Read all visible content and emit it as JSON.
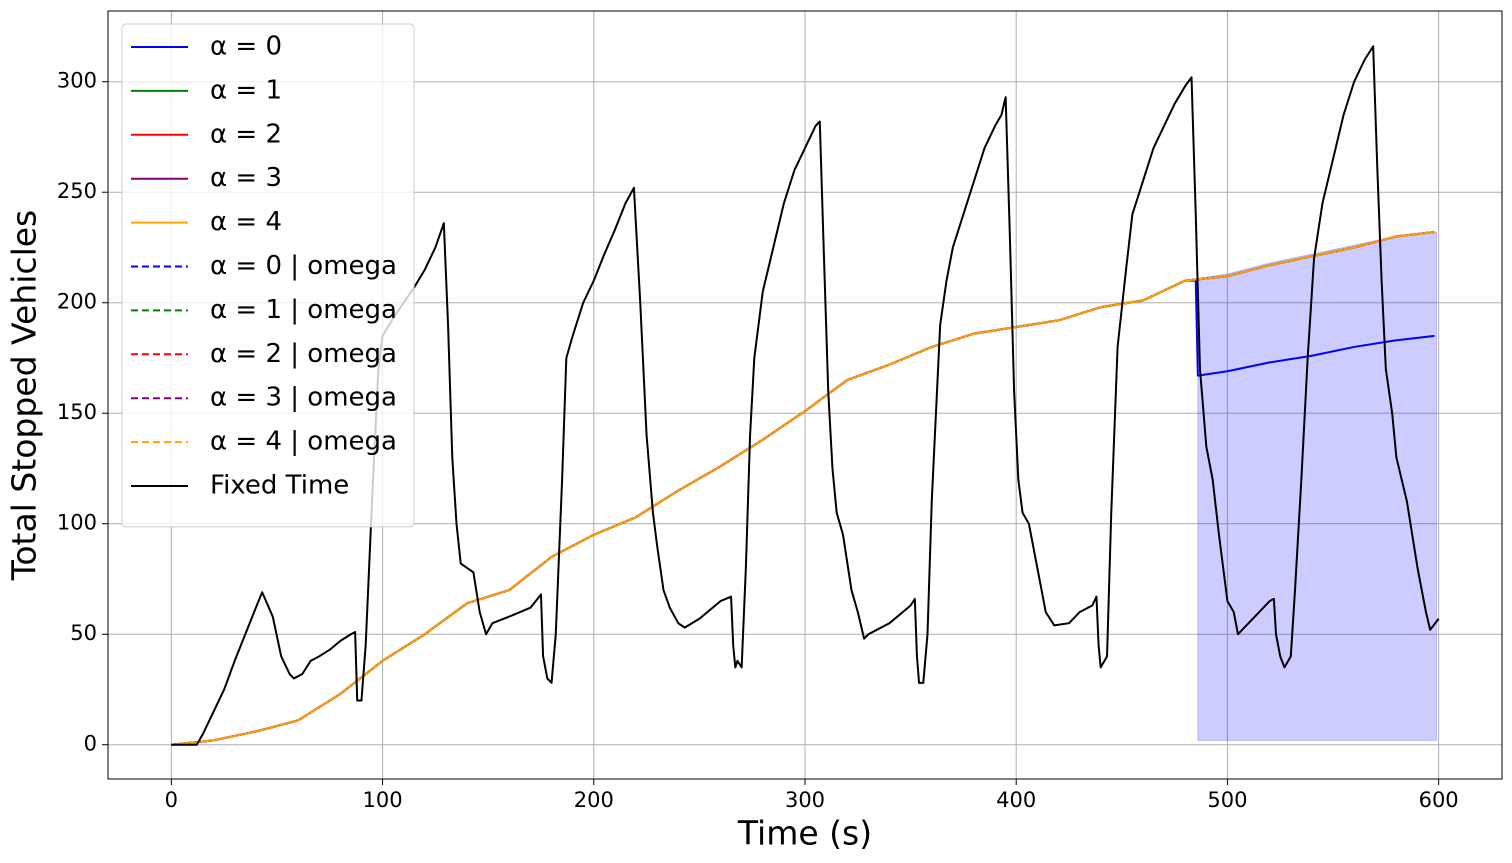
{
  "chart_data": {
    "type": "line",
    "xlabel": "Time (s)",
    "ylabel": "Total Stopped Vehicles",
    "xlim": [
      -30,
      630
    ],
    "ylim": [
      -15.5,
      332
    ],
    "xticks": [
      0,
      100,
      200,
      300,
      400,
      500,
      600
    ],
    "yticks": [
      0,
      50,
      100,
      150,
      200,
      250,
      300
    ],
    "grid": true,
    "legend": "upper left",
    "shade": {
      "color": "#0000ff",
      "opacity": 0.2,
      "x": [
        486,
        500,
        520,
        540,
        560,
        580,
        599
      ],
      "upper": [
        211,
        213,
        218,
        222,
        226,
        230,
        232
      ],
      "lower": [
        2,
        2,
        2,
        2,
        2,
        2,
        2
      ]
    },
    "series": [
      {
        "name": "α = 0",
        "color": "#0000ff",
        "dash": false,
        "x": [
          0,
          20,
          40,
          60,
          80,
          100,
          120,
          140,
          160,
          180,
          200,
          220,
          240,
          260,
          280,
          300,
          320,
          340,
          360,
          380,
          400,
          420,
          440,
          460,
          480,
          485,
          486,
          500,
          520,
          540,
          560,
          580,
          598
        ],
        "values": [
          0,
          2,
          6,
          11,
          23,
          38,
          50,
          64,
          70,
          85,
          95,
          103,
          115,
          126,
          138,
          151,
          165,
          172,
          180,
          186,
          189,
          192,
          198,
          201,
          210,
          210,
          167,
          169,
          173,
          176,
          180,
          183,
          185
        ]
      },
      {
        "name": "α = 1",
        "color": "#008000",
        "dash": false,
        "x": [
          0,
          20,
          40,
          60,
          80,
          100,
          120,
          140,
          160,
          180,
          200,
          220,
          240,
          260,
          280,
          300,
          320,
          340,
          360,
          380,
          400,
          420,
          440,
          460,
          480,
          500,
          520,
          540,
          560,
          580,
          598
        ],
        "values": [
          0,
          2,
          6,
          11,
          23,
          38,
          50,
          64,
          70,
          85,
          95,
          103,
          115,
          126,
          138,
          151,
          165,
          172,
          180,
          186,
          189,
          192,
          198,
          201,
          210,
          212,
          217,
          221,
          225,
          230,
          232
        ]
      },
      {
        "name": "α = 2",
        "color": "#ff0000",
        "dash": false,
        "x": [
          0,
          20,
          40,
          60,
          80,
          100,
          120,
          140,
          160,
          180,
          200,
          220,
          240,
          260,
          280,
          300,
          320,
          340,
          360,
          380,
          400,
          420,
          440,
          460,
          480,
          500,
          520,
          540,
          560,
          580,
          598
        ],
        "values": [
          0,
          2,
          6,
          11,
          23,
          38,
          50,
          64,
          70,
          85,
          95,
          103,
          115,
          126,
          138,
          151,
          165,
          172,
          180,
          186,
          189,
          192,
          198,
          201,
          210,
          212,
          217,
          221,
          225,
          230,
          232
        ]
      },
      {
        "name": "α = 3",
        "color": "#800080",
        "dash": false,
        "x": [
          0,
          20,
          40,
          60,
          80,
          100,
          120,
          140,
          160,
          180,
          200,
          220,
          240,
          260,
          280,
          300,
          320,
          340,
          360,
          380,
          400,
          420,
          440,
          460,
          480,
          500,
          520,
          540,
          560,
          580,
          598
        ],
        "values": [
          0,
          2,
          6,
          11,
          23,
          38,
          50,
          64,
          70,
          85,
          95,
          103,
          115,
          126,
          138,
          151,
          165,
          172,
          180,
          186,
          189,
          192,
          198,
          201,
          210,
          212,
          217,
          221,
          225,
          230,
          232
        ]
      },
      {
        "name": "α = 4",
        "color": "#ffa500",
        "dash": false,
        "x": [
          0,
          20,
          40,
          60,
          80,
          100,
          120,
          140,
          160,
          180,
          200,
          220,
          240,
          260,
          280,
          300,
          320,
          340,
          360,
          380,
          400,
          420,
          440,
          460,
          480,
          500,
          520,
          540,
          560,
          580,
          598
        ],
        "values": [
          0,
          2,
          6,
          11,
          23,
          38,
          50,
          64,
          70,
          85,
          95,
          103,
          115,
          126,
          138,
          151,
          165,
          172,
          180,
          186,
          189,
          192,
          198,
          201,
          210,
          212,
          217,
          221,
          225,
          230,
          232
        ]
      },
      {
        "name": "α = 0 | omega",
        "color": "#0000ff",
        "dash": true,
        "x": [
          0,
          20,
          40,
          60,
          80,
          100,
          120,
          140,
          160,
          180,
          200,
          220,
          240,
          260,
          280,
          300,
          320,
          340,
          360,
          380,
          400,
          420,
          440,
          460,
          480,
          500,
          520,
          540,
          560,
          580,
          598
        ],
        "values": [
          0,
          2,
          6,
          11,
          23,
          38,
          50,
          64,
          70,
          85,
          95,
          103,
          115,
          126,
          138,
          151,
          165,
          172,
          180,
          186,
          189,
          192,
          198,
          201,
          210,
          212,
          217,
          221,
          225,
          230,
          232
        ]
      },
      {
        "name": "α = 1 | omega",
        "color": "#008000",
        "dash": true,
        "x": [
          0,
          20,
          40,
          60,
          80,
          100,
          120,
          140,
          160,
          180,
          200,
          220,
          240,
          260,
          280,
          300,
          320,
          340,
          360,
          380,
          400,
          420,
          440,
          460,
          480,
          500,
          520,
          540,
          560,
          580,
          598
        ],
        "values": [
          0,
          2,
          6,
          11,
          23,
          38,
          50,
          64,
          70,
          85,
          95,
          103,
          115,
          126,
          138,
          151,
          165,
          172,
          180,
          186,
          189,
          192,
          198,
          201,
          210,
          212,
          217,
          221,
          225,
          230,
          232
        ]
      },
      {
        "name": "α = 2 | omega",
        "color": "#ff0000",
        "dash": true,
        "x": [
          0,
          20,
          40,
          60,
          80,
          100,
          120,
          140,
          160,
          180,
          200,
          220,
          240,
          260,
          280,
          300,
          320,
          340,
          360,
          380,
          400,
          420,
          440,
          460,
          480,
          500,
          520,
          540,
          560,
          580,
          598
        ],
        "values": [
          0,
          2,
          6,
          11,
          23,
          38,
          50,
          64,
          70,
          85,
          95,
          103,
          115,
          126,
          138,
          151,
          165,
          172,
          180,
          186,
          189,
          192,
          198,
          201,
          210,
          212,
          217,
          221,
          225,
          230,
          232
        ]
      },
      {
        "name": "α = 3 | omega",
        "color": "#800080",
        "dash": true,
        "x": [
          0,
          20,
          40,
          60,
          80,
          100,
          120,
          140,
          160,
          180,
          200,
          220,
          240,
          260,
          280,
          300,
          320,
          340,
          360,
          380,
          400,
          420,
          440,
          460,
          480,
          500,
          520,
          540,
          560,
          580,
          598
        ],
        "values": [
          0,
          2,
          6,
          11,
          23,
          38,
          50,
          64,
          70,
          85,
          95,
          103,
          115,
          126,
          138,
          151,
          165,
          172,
          180,
          186,
          189,
          192,
          198,
          201,
          210,
          212,
          217,
          221,
          225,
          230,
          232
        ]
      },
      {
        "name": "α = 4 | omega",
        "color": "#ffa500",
        "dash": true,
        "x": [
          0,
          20,
          40,
          60,
          80,
          100,
          120,
          140,
          160,
          180,
          200,
          220,
          240,
          260,
          280,
          300,
          320,
          340,
          360,
          380,
          400,
          420,
          440,
          460,
          480,
          500,
          520,
          540,
          560,
          580,
          598
        ],
        "values": [
          0,
          2,
          6,
          11,
          23,
          38,
          50,
          64,
          70,
          85,
          95,
          103,
          115,
          126,
          138,
          151,
          165,
          172,
          180,
          186,
          189,
          192,
          198,
          201,
          210,
          212,
          217,
          221,
          225,
          230,
          232
        ]
      },
      {
        "name": "Fixed Time",
        "color": "#000000",
        "dash": false,
        "x": [
          0,
          12,
          15,
          20,
          25,
          30,
          35,
          40,
          43,
          48,
          52,
          56,
          58,
          62,
          66,
          70,
          75,
          80,
          85,
          87,
          88,
          90,
          92,
          95,
          98,
          100,
          105,
          110,
          115,
          120,
          125,
          129,
          131,
          133,
          135,
          137,
          140,
          143,
          146,
          149,
          152,
          160,
          170,
          175,
          176,
          178,
          180,
          182,
          185,
          187,
          190,
          195,
          200,
          205,
          210,
          215,
          219,
          222,
          225,
          228,
          230,
          233,
          236,
          240,
          243,
          250,
          260,
          265,
          266,
          267,
          268,
          270,
          272,
          274,
          276,
          280,
          285,
          290,
          295,
          300,
          305,
          307,
          309,
          311,
          313,
          315,
          318,
          322,
          325,
          328,
          330,
          340,
          350,
          352,
          353,
          354,
          356,
          358,
          360,
          362,
          364,
          367,
          370,
          375,
          380,
          385,
          390,
          393,
          395,
          397,
          399,
          401,
          403,
          406,
          410,
          414,
          418,
          425,
          430,
          436,
          438,
          439,
          440,
          443,
          445,
          448,
          452,
          455,
          460,
          465,
          470,
          475,
          480,
          483,
          485,
          487,
          490,
          493,
          496,
          498,
          500,
          503,
          505,
          510,
          515,
          520,
          522,
          523,
          525,
          527,
          530,
          532,
          535,
          538,
          541,
          545,
          550,
          555,
          560,
          565,
          569,
          571,
          573,
          575,
          578,
          580,
          585,
          590,
          594,
          596,
          600
        ],
        "values": [
          0,
          0,
          5,
          15,
          25,
          38,
          50,
          62,
          69,
          58,
          40,
          32,
          30,
          32,
          38,
          40,
          43,
          47,
          50,
          51,
          20,
          20,
          45,
          110,
          170,
          185,
          193,
          200,
          207,
          215,
          225,
          236,
          190,
          130,
          100,
          82,
          80,
          78,
          60,
          50,
          55,
          58,
          62,
          68,
          40,
          30,
          28,
          50,
          120,
          175,
          185,
          200,
          210,
          222,
          233,
          245,
          252,
          200,
          140,
          105,
          90,
          70,
          62,
          55,
          53,
          57,
          65,
          67,
          45,
          35,
          38,
          35,
          80,
          140,
          175,
          205,
          225,
          245,
          260,
          270,
          280,
          282,
          220,
          160,
          125,
          105,
          95,
          70,
          60,
          48,
          50,
          55,
          63,
          66,
          40,
          28,
          28,
          50,
          110,
          150,
          190,
          210,
          225,
          240,
          255,
          270,
          280,
          285,
          293,
          230,
          160,
          120,
          105,
          100,
          80,
          60,
          54,
          55,
          60,
          63,
          67,
          45,
          35,
          40,
          105,
          180,
          215,
          240,
          255,
          270,
          280,
          290,
          298,
          302,
          240,
          170,
          135,
          120,
          95,
          80,
          65,
          60,
          50,
          55,
          60,
          65,
          66,
          50,
          40,
          35,
          40,
          70,
          120,
          175,
          220,
          245,
          265,
          285,
          300,
          310,
          316,
          260,
          210,
          170,
          150,
          130,
          110,
          80,
          60,
          52,
          57
        ]
      }
    ]
  }
}
